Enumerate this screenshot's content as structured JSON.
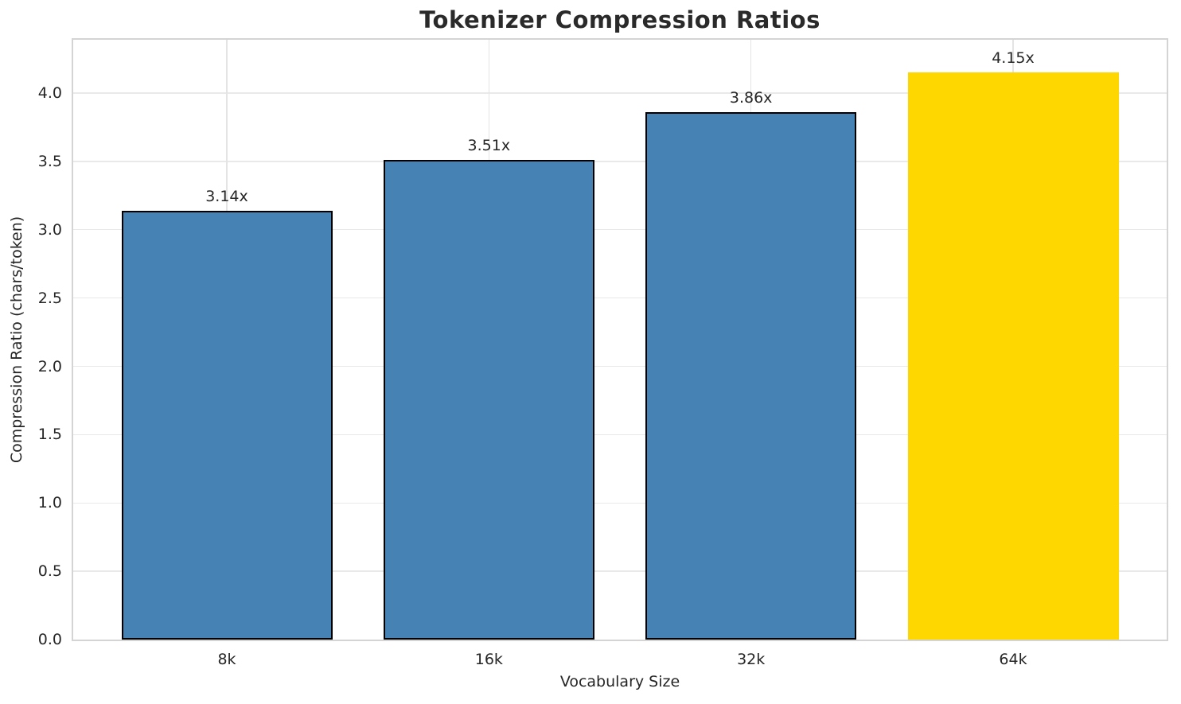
{
  "chart_data": {
    "type": "bar",
    "title": "Tokenizer Compression Ratios",
    "xlabel": "Vocabulary Size",
    "ylabel": "Compression Ratio (chars/token)",
    "categories": [
      "8k",
      "16k",
      "32k",
      "64k"
    ],
    "values": [
      3.14,
      3.51,
      3.86,
      4.15
    ],
    "bar_labels": [
      "3.14x",
      "3.51x",
      "3.86x",
      "4.15x"
    ],
    "bar_colors": [
      "#4682B4",
      "#4682B4",
      "#4682B4",
      "#FFD700"
    ],
    "bar_edge_colors": [
      "#000000",
      "#000000",
      "#000000",
      "none"
    ],
    "ytick_labels": [
      "0.0",
      "0.5",
      "1.0",
      "1.5",
      "2.0",
      "2.5",
      "3.0",
      "3.5",
      "4.0"
    ],
    "yticks": [
      0,
      0.5,
      1,
      1.5,
      2,
      2.5,
      3,
      3.5,
      4
    ],
    "ylim": [
      0,
      4.39
    ],
    "grid": true,
    "legend": null,
    "colors": {
      "grid": "#e9e9e9",
      "spine": "#d4d4d4",
      "text": "#262626",
      "background": "#ffffff"
    }
  }
}
